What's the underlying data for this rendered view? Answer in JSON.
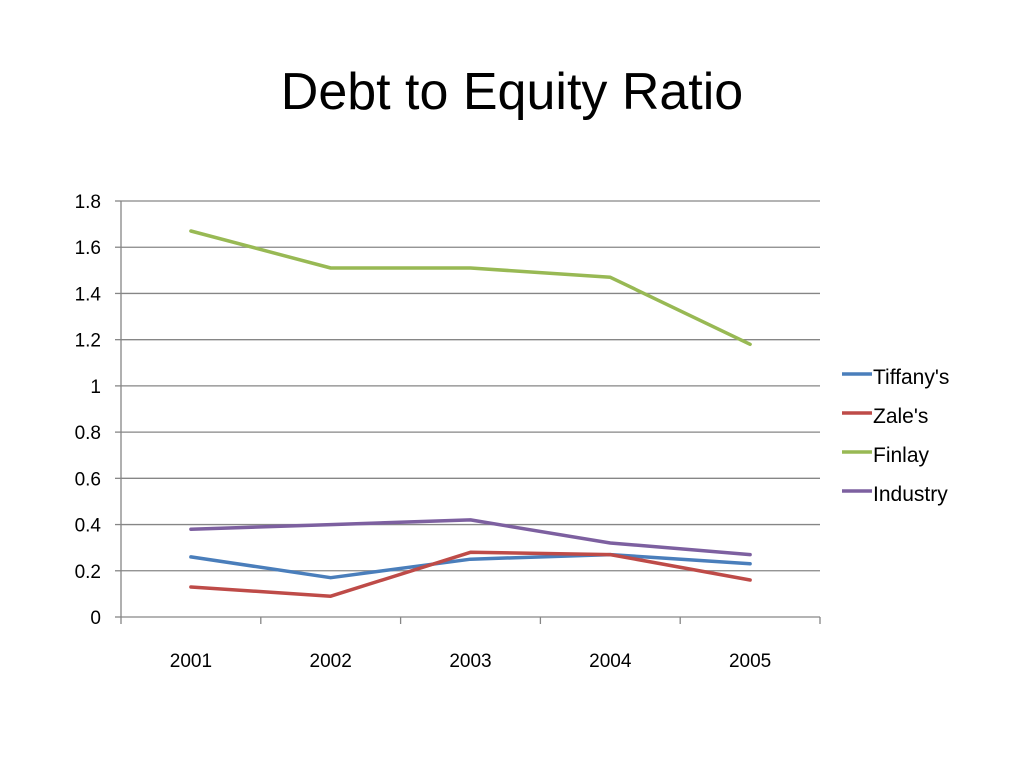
{
  "slide": {
    "title": "Debt to Equity Ratio"
  },
  "chart_data": {
    "type": "line",
    "title": "",
    "xlabel": "",
    "ylabel": "",
    "categories": [
      "2001",
      "2002",
      "2003",
      "2004",
      "2005"
    ],
    "ylim": [
      0,
      1.8
    ],
    "yticks": [
      "0",
      "0.2",
      "0.4",
      "0.6",
      "0.8",
      "1",
      "1.2",
      "1.4",
      "1.6",
      "1.8"
    ],
    "grid": true,
    "legend": "right",
    "series": [
      {
        "name": "Tiffany's",
        "color": "#4a7ebb",
        "values": [
          0.26,
          0.17,
          0.25,
          0.27,
          0.23
        ]
      },
      {
        "name": "Zale's",
        "color": "#be4b48",
        "values": [
          0.13,
          0.09,
          0.28,
          0.27,
          0.16
        ]
      },
      {
        "name": "Finlay",
        "color": "#98b954",
        "values": [
          1.67,
          1.51,
          1.51,
          1.47,
          1.18
        ]
      },
      {
        "name": "Industry",
        "color": "#7d60a0",
        "values": [
          0.38,
          0.4,
          0.42,
          0.32,
          0.27
        ]
      }
    ]
  }
}
